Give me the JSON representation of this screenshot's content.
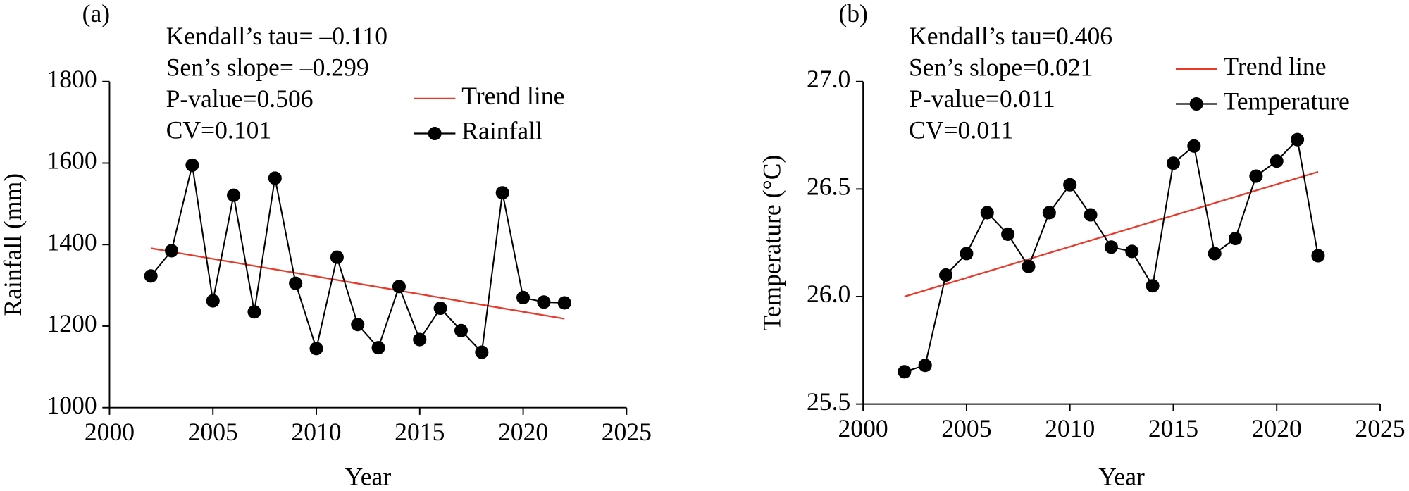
{
  "chart_data": [
    {
      "type": "line",
      "panel_label": "(a)",
      "xlabel": "Year",
      "ylabel": "Rainfall (mm)",
      "annotations": [
        "Kendall’s tau= –0.110",
        "Sen’s slope= –0.299",
        "P-value=0.506",
        "CV=0.101"
      ],
      "xlim": [
        2000,
        2025
      ],
      "xticks": [
        2000,
        2005,
        2010,
        2015,
        2020,
        2025
      ],
      "ylim": [
        1000,
        1800
      ],
      "yticks": [
        1000,
        1200,
        1400,
        1600,
        1800
      ],
      "series": [
        {
          "name": "Trend line",
          "color": "#e8392b",
          "marker": false,
          "x": [
            2002,
            2022
          ],
          "values": [
            1391,
            1218
          ]
        },
        {
          "name": "Rainfall",
          "color": "#000000",
          "marker": true,
          "x": [
            2002,
            2003,
            2004,
            2005,
            2006,
            2007,
            2008,
            2009,
            2010,
            2011,
            2012,
            2013,
            2014,
            2015,
            2016,
            2017,
            2018,
            2019,
            2020,
            2021,
            2022
          ],
          "values": [
            1323,
            1385,
            1595,
            1262,
            1521,
            1235,
            1563,
            1305,
            1145,
            1369,
            1204,
            1147,
            1297,
            1167,
            1244,
            1189,
            1136,
            1527,
            1270,
            1259,
            1257
          ]
        }
      ]
    },
    {
      "type": "line",
      "panel_label": "(b)",
      "xlabel": "Year",
      "ylabel": "Temperature (°C)",
      "annotations": [
        "Kendall’s tau=0.406",
        "Sen’s slope=0.021",
        "P-value=0.011",
        "CV=0.011"
      ],
      "xlim": [
        2000,
        2025
      ],
      "xticks": [
        2000,
        2005,
        2010,
        2015,
        2020,
        2025
      ],
      "ylim": [
        25.5,
        27.0
      ],
      "yticks": [
        {
          "value": 25.5,
          "label": "25.5"
        },
        {
          "value": 26,
          "label": "26.0"
        },
        {
          "value": 26.5,
          "label": "26.5"
        },
        {
          "value": 27,
          "label": "27.0"
        }
      ],
      "series": [
        {
          "name": "Trend line",
          "color": "#e8392b",
          "marker": false,
          "x": [
            2002,
            2022
          ],
          "values": [
            26.0,
            26.58
          ]
        },
        {
          "name": "Temperature",
          "color": "#000000",
          "marker": true,
          "x": [
            2002,
            2003,
            2004,
            2005,
            2006,
            2007,
            2008,
            2009,
            2010,
            2011,
            2012,
            2013,
            2014,
            2015,
            2016,
            2017,
            2018,
            2019,
            2020,
            2021,
            2022
          ],
          "values": [
            25.65,
            25.68,
            26.1,
            26.2,
            26.39,
            26.29,
            26.14,
            26.39,
            26.52,
            26.38,
            26.23,
            26.21,
            26.05,
            26.62,
            26.7,
            26.2,
            26.27,
            26.56,
            26.63,
            26.73,
            26.19
          ]
        }
      ]
    }
  ]
}
